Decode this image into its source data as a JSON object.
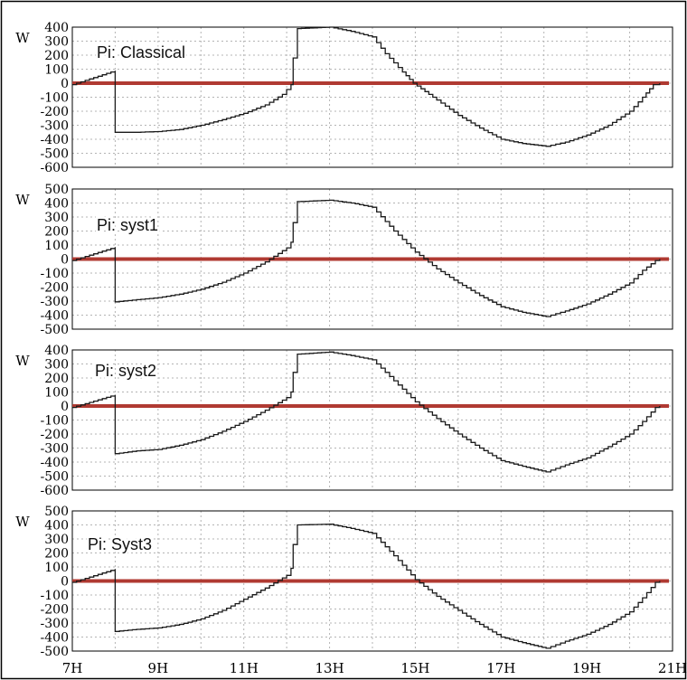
{
  "chart_data": [
    {
      "type": "line",
      "title": "Pi: Classical",
      "ylabel": "W",
      "ylim": [
        -600,
        400
      ],
      "yticks": [
        400,
        300,
        200,
        100,
        0,
        -100,
        -200,
        -300,
        -400,
        -500,
        -600
      ],
      "xlim": [
        7,
        21
      ],
      "grid": true,
      "colors": {
        "series": "#1a1a1a",
        "zero_line": "#b03a32",
        "grid": "#b4b4b4"
      },
      "series": [
        {
          "values": [
            [
              7.0,
              -10
            ],
            [
              8.0,
              90
            ],
            [
              8.0,
              -350
            ],
            [
              8.5,
              -350
            ],
            [
              9.0,
              -345
            ],
            [
              9.5,
              -330
            ],
            [
              10.0,
              -300
            ],
            [
              10.5,
              -260
            ],
            [
              11.0,
              -215
            ],
            [
              11.5,
              -155
            ],
            [
              11.9,
              -80
            ],
            [
              12.1,
              -10
            ],
            [
              12.15,
              180
            ],
            [
              12.25,
              190
            ],
            [
              12.25,
              390
            ],
            [
              13.0,
              400
            ],
            [
              13.5,
              370
            ],
            [
              14.0,
              330
            ],
            [
              14.3,
              210
            ],
            [
              14.7,
              80
            ],
            [
              14.95,
              0
            ],
            [
              15.5,
              -120
            ],
            [
              16.0,
              -230
            ],
            [
              16.5,
              -320
            ],
            [
              17.0,
              -400
            ],
            [
              17.5,
              -430
            ],
            [
              18.05,
              -450
            ],
            [
              18.5,
              -420
            ],
            [
              19.0,
              -370
            ],
            [
              19.5,
              -300
            ],
            [
              20.0,
              -200
            ],
            [
              20.3,
              -100
            ],
            [
              20.55,
              -10
            ],
            [
              20.7,
              0
            ]
          ]
        }
      ]
    },
    {
      "type": "line",
      "title": "Pi: syst1",
      "ylabel": "W",
      "ylim": [
        -500,
        500
      ],
      "yticks": [
        500,
        400,
        300,
        200,
        100,
        0,
        -100,
        -200,
        -300,
        -400,
        -500
      ],
      "xlim": [
        7,
        21
      ],
      "grid": true,
      "colors": {
        "series": "#1a1a1a",
        "zero_line": "#b03a32",
        "grid": "#b4b4b4"
      },
      "series": [
        {
          "values": [
            [
              7.0,
              -10
            ],
            [
              8.0,
              85
            ],
            [
              8.0,
              -305
            ],
            [
              8.5,
              -290
            ],
            [
              9.0,
              -275
            ],
            [
              9.5,
              -250
            ],
            [
              10.0,
              -215
            ],
            [
              10.5,
              -165
            ],
            [
              11.0,
              -100
            ],
            [
              11.5,
              -20
            ],
            [
              12.0,
              80
            ],
            [
              12.1,
              120
            ],
            [
              12.15,
              260
            ],
            [
              12.25,
              280
            ],
            [
              12.25,
              410
            ],
            [
              13.0,
              420
            ],
            [
              13.5,
              400
            ],
            [
              14.0,
              370
            ],
            [
              14.5,
              200
            ],
            [
              15.0,
              50
            ],
            [
              15.5,
              -70
            ],
            [
              16.0,
              -170
            ],
            [
              16.5,
              -260
            ],
            [
              17.0,
              -340
            ],
            [
              17.5,
              -380
            ],
            [
              18.05,
              -410
            ],
            [
              18.5,
              -370
            ],
            [
              19.0,
              -320
            ],
            [
              19.5,
              -250
            ],
            [
              20.0,
              -170
            ],
            [
              20.3,
              -80
            ],
            [
              20.6,
              -10
            ],
            [
              20.7,
              0
            ]
          ]
        }
      ]
    },
    {
      "type": "line",
      "title": "Pi: syst2",
      "ylabel": "W",
      "ylim": [
        -600,
        400
      ],
      "yticks": [
        400,
        300,
        200,
        100,
        0,
        -100,
        -200,
        -300,
        -400,
        -500,
        -600
      ],
      "xlim": [
        7,
        21
      ],
      "grid": true,
      "colors": {
        "series": "#1a1a1a",
        "zero_line": "#b03a32",
        "grid": "#b4b4b4"
      },
      "series": [
        {
          "values": [
            [
              7.0,
              -10
            ],
            [
              8.0,
              80
            ],
            [
              8.0,
              -340
            ],
            [
              8.5,
              -320
            ],
            [
              9.0,
              -310
            ],
            [
              9.5,
              -280
            ],
            [
              10.0,
              -240
            ],
            [
              10.5,
              -180
            ],
            [
              11.0,
              -110
            ],
            [
              11.5,
              -30
            ],
            [
              12.0,
              60
            ],
            [
              12.1,
              100
            ],
            [
              12.15,
              240
            ],
            [
              12.25,
              260
            ],
            [
              12.25,
              370
            ],
            [
              13.0,
              385
            ],
            [
              13.5,
              360
            ],
            [
              14.0,
              330
            ],
            [
              14.5,
              180
            ],
            [
              15.0,
              30
            ],
            [
              15.5,
              -90
            ],
            [
              16.0,
              -200
            ],
            [
              16.5,
              -300
            ],
            [
              17.0,
              -390
            ],
            [
              17.5,
              -430
            ],
            [
              18.05,
              -470
            ],
            [
              18.5,
              -420
            ],
            [
              19.0,
              -370
            ],
            [
              19.5,
              -290
            ],
            [
              20.0,
              -200
            ],
            [
              20.3,
              -110
            ],
            [
              20.6,
              -10
            ],
            [
              20.7,
              0
            ]
          ]
        }
      ]
    },
    {
      "type": "line",
      "title": "Pi: Syst3",
      "ylabel": "W",
      "ylim": [
        -500,
        500
      ],
      "yticks": [
        500,
        400,
        300,
        200,
        100,
        0,
        -100,
        -200,
        -300,
        -400,
        -500
      ],
      "xlabel": "",
      "xticks": [
        "7H",
        "9H",
        "11H",
        "13H",
        "15H",
        "17H",
        "19H",
        "21H"
      ],
      "xlim": [
        7,
        21
      ],
      "grid": true,
      "colors": {
        "series": "#1a1a1a",
        "zero_line": "#b03a32",
        "grid": "#b4b4b4"
      },
      "series": [
        {
          "values": [
            [
              7.0,
              -10
            ],
            [
              8.0,
              85
            ],
            [
              8.0,
              -360
            ],
            [
              8.5,
              -345
            ],
            [
              9.0,
              -335
            ],
            [
              9.5,
              -310
            ],
            [
              10.0,
              -270
            ],
            [
              10.5,
              -210
            ],
            [
              11.0,
              -130
            ],
            [
              11.5,
              -50
            ],
            [
              12.0,
              40
            ],
            [
              12.1,
              90
            ],
            [
              12.15,
              260
            ],
            [
              12.25,
              270
            ],
            [
              12.25,
              400
            ],
            [
              13.0,
              405
            ],
            [
              13.5,
              375
            ],
            [
              14.0,
              340
            ],
            [
              14.5,
              180
            ],
            [
              15.0,
              10
            ],
            [
              15.5,
              -110
            ],
            [
              16.0,
              -210
            ],
            [
              16.5,
              -310
            ],
            [
              17.0,
              -400
            ],
            [
              17.5,
              -440
            ],
            [
              18.05,
              -480
            ],
            [
              18.5,
              -430
            ],
            [
              19.0,
              -380
            ],
            [
              19.5,
              -310
            ],
            [
              20.0,
              -220
            ],
            [
              20.3,
              -120
            ],
            [
              20.6,
              -10
            ],
            [
              20.7,
              0
            ]
          ]
        }
      ]
    }
  ]
}
